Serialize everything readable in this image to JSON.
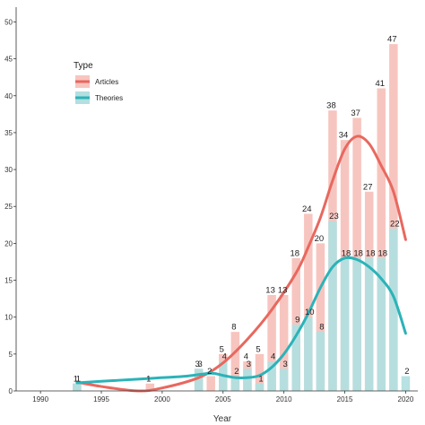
{
  "chart_data": {
    "type": "bar",
    "xlabel": "Year",
    "ylabel": "",
    "xlim": [
      1988,
      2021
    ],
    "ylim": [
      0,
      52
    ],
    "x_ticks": [
      1990,
      1995,
      2000,
      2005,
      2010,
      2015,
      2020
    ],
    "y_ticks": [
      0,
      5,
      10,
      15,
      20,
      25,
      30,
      35,
      40,
      45,
      50
    ],
    "grid": false,
    "legend": {
      "title": "Type",
      "placement": "top-left",
      "entries": [
        {
          "name": "Articles",
          "bar_color": "#f7c5bf",
          "line_color": "#e8685f"
        },
        {
          "name": "Theories",
          "bar_color": "#b3dfe0",
          "line_color": "#2bb3b8"
        }
      ]
    },
    "series": [
      {
        "name": "Articles",
        "x": [
          1993,
          1999,
          2003,
          2004,
          2005,
          2006,
          2007,
          2008,
          2009,
          2010,
          2011,
          2012,
          2013,
          2014,
          2015,
          2016,
          2017,
          2018,
          2019
        ],
        "values": [
          1,
          1,
          3,
          2,
          5,
          8,
          4,
          5,
          13,
          13,
          18,
          24,
          20,
          38,
          34,
          37,
          27,
          41,
          47
        ],
        "labels": [
          "1",
          "1",
          "3",
          "2",
          "5",
          "8",
          "4",
          "5",
          "13",
          "13",
          "18",
          "24",
          "20",
          "38",
          "34",
          "37",
          "27",
          "41",
          "47"
        ]
      },
      {
        "name": "Theories",
        "x": [
          1993,
          2003,
          2005,
          2006,
          2007,
          2008,
          2009,
          2010,
          2011,
          2012,
          2013,
          2014,
          2015,
          2016,
          2017,
          2018,
          2019,
          2020
        ],
        "values": [
          1,
          3,
          4,
          2,
          3,
          1,
          4,
          3,
          9,
          10,
          8,
          23,
          18,
          18,
          18,
          18,
          22,
          2
        ],
        "labels": [
          "1",
          "3",
          "4",
          "2",
          "3",
          "1",
          "4",
          "3",
          "9",
          "10",
          "8",
          "23",
          "18",
          "18",
          "18",
          "18",
          "22",
          "2"
        ]
      }
    ],
    "trend_lines": [
      {
        "series": "Articles",
        "x": [
          1993,
          1995,
          1998,
          2000,
          2003,
          2005,
          2007,
          2009,
          2011,
          2012,
          2013,
          2014,
          2015,
          2016,
          2017,
          2018,
          2019,
          2020
        ],
        "y": [
          1.2,
          0.6,
          0.0,
          0.4,
          1.8,
          3.8,
          7.0,
          11.0,
          16.0,
          19.5,
          23.5,
          28.5,
          32.8,
          34.5,
          33.5,
          30.5,
          27.0,
          20.5
        ]
      },
      {
        "series": "Theories",
        "x": [
          1993,
          1995,
          1998,
          2000,
          2002,
          2004,
          2005,
          2006,
          2007,
          2008,
          2009,
          2010,
          2011,
          2012,
          2013,
          2014,
          2015,
          2016,
          2017,
          2018,
          2019,
          2020
        ],
        "y": [
          1.1,
          1.3,
          1.6,
          1.8,
          2.0,
          2.4,
          2.1,
          1.8,
          1.8,
          2.1,
          3.2,
          5.0,
          7.5,
          10.5,
          14.0,
          16.8,
          18.0,
          17.8,
          16.8,
          15.2,
          12.8,
          7.8
        ]
      }
    ]
  }
}
